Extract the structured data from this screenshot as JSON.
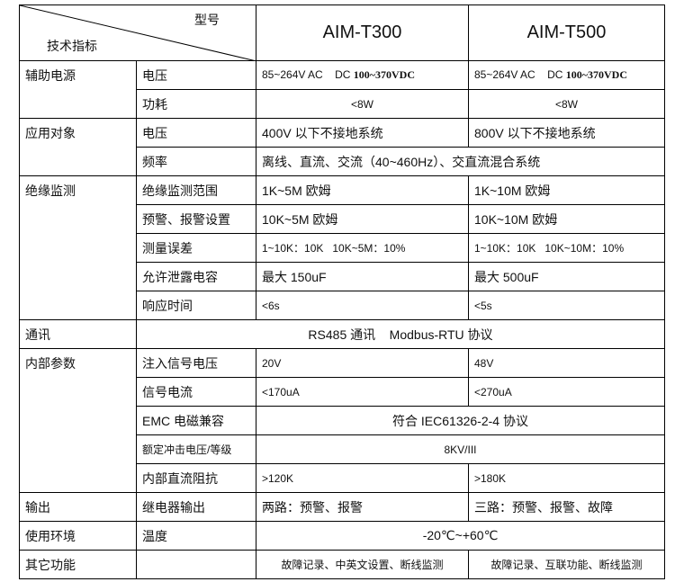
{
  "header": {
    "model_label": "型号",
    "spec_label": "技术指标",
    "models": [
      "AIM-T300",
      "AIM-T500"
    ]
  },
  "rows": {
    "aux_power": {
      "group": "辅助电源",
      "voltage_label": "电压",
      "v_ac": "85~264V AC",
      "v_dc_prefix": "DC",
      "v_dc": "100~370VDC",
      "power_label": "功耗",
      "power": "<8W"
    },
    "application": {
      "group": "应用对象",
      "voltage_label": "电压",
      "t300_voltage": "400V 以下不接地系统",
      "t500_voltage": "800V 以下不接地系统",
      "freq_label": "频率",
      "freq": "离线、直流、交流（40~460Hz）、交直流混合系统"
    },
    "insulation": {
      "group": "绝缘监测",
      "range_label": "绝缘监测范围",
      "t300_range": "1K~5M 欧姆",
      "t500_range": "1K~10M 欧姆",
      "alarm_label": "预警、报警设置",
      "t300_alarm": "10K~5M 欧姆",
      "t500_alarm": "10K~10M 欧姆",
      "error_label": "测量误差",
      "t300_error": "1~10K：10K   10K~5M：10%",
      "t500_error": "1~10K：10K   10K~10M：10%",
      "cap_label": "允许泄露电容",
      "t300_cap": "最大 150uF",
      "t500_cap": "最大 500uF",
      "resp_label": "响应时间",
      "t300_resp": "<6s",
      "t500_resp": "<5s"
    },
    "comm": {
      "group": "通讯",
      "value": "RS485 通讯    Modbus-RTU 协议"
    },
    "internal": {
      "group": "内部参数",
      "inj_label": "注入信号电压",
      "t300_inj": "20V",
      "t500_inj": "48V",
      "cur_label": "信号电流",
      "t300_cur": "<170uA",
      "t500_cur": "<270uA",
      "emc_label": "EMC 电磁兼容",
      "emc": "符合 IEC61326-2-4 协议",
      "imp_label": "额定冲击电压/等级",
      "imp": "8KV/III",
      "dc_label": "内部直流阻抗",
      "t300_dc": ">120K",
      "t500_dc": ">180K"
    },
    "output": {
      "group": "输出",
      "relay_label": "继电器输出",
      "t300_relay": "两路：预警、报警",
      "t500_relay": "三路：预警、报警、故障"
    },
    "env": {
      "group": "使用环境",
      "temp_label": "温度",
      "temp": "-20℃~+60℃"
    },
    "other": {
      "group": "其它功能",
      "t300": "故障记录、中英文设置、断线监测",
      "t500": "故障记录、互联功能、断线监测"
    }
  }
}
